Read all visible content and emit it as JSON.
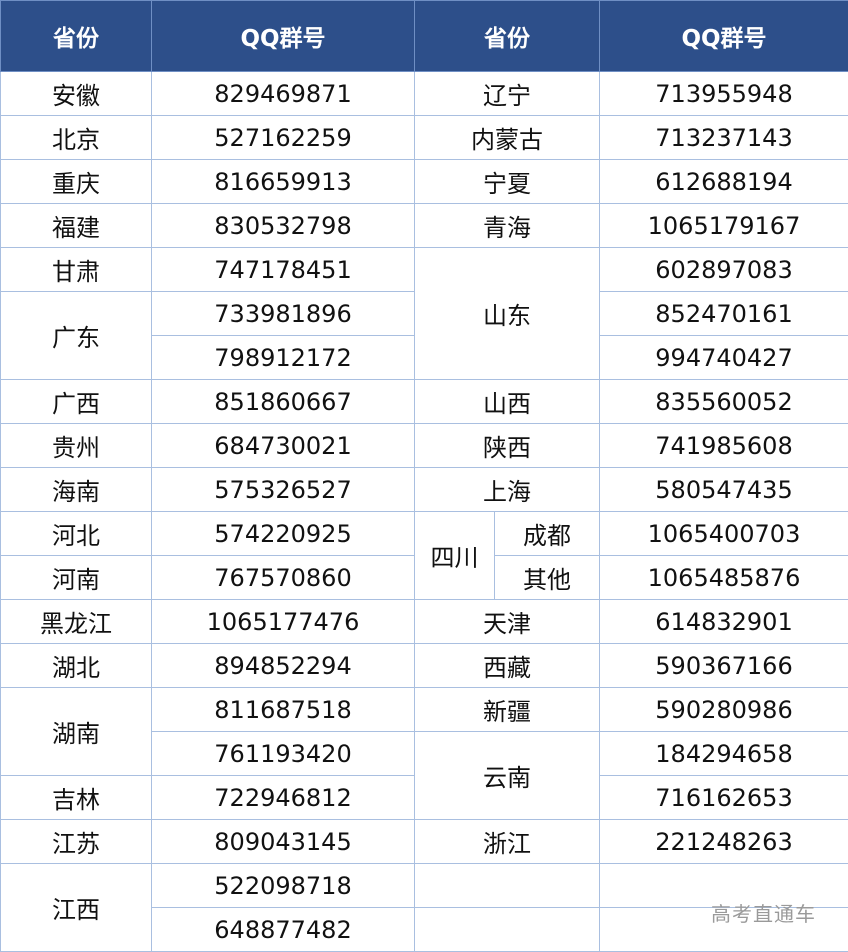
{
  "header": {
    "province": "省份",
    "qq": "QQ群号"
  },
  "left": [
    {
      "province": "安徽",
      "qq": [
        "829469871"
      ]
    },
    {
      "province": "北京",
      "qq": [
        "527162259"
      ]
    },
    {
      "province": "重庆",
      "qq": [
        "816659913"
      ]
    },
    {
      "province": "福建",
      "qq": [
        "830532798"
      ]
    },
    {
      "province": "甘肃",
      "qq": [
        "747178451"
      ]
    },
    {
      "province": "广东",
      "qq": [
        "733981896",
        "798912172"
      ]
    },
    {
      "province": "广西",
      "qq": [
        "851860667"
      ]
    },
    {
      "province": "贵州",
      "qq": [
        "684730021"
      ]
    },
    {
      "province": "海南",
      "qq": [
        "575326527"
      ]
    },
    {
      "province": "河北",
      "qq": [
        "574220925"
      ]
    },
    {
      "province": "河南",
      "qq": [
        "767570860"
      ]
    },
    {
      "province": "黑龙江",
      "qq": [
        "1065177476"
      ]
    },
    {
      "province": "湖北",
      "qq": [
        "894852294"
      ]
    },
    {
      "province": "湖南",
      "qq": [
        "811687518",
        "761193420"
      ]
    },
    {
      "province": "吉林",
      "qq": [
        "722946812"
      ]
    },
    {
      "province": "江苏",
      "qq": [
        "809043145"
      ]
    },
    {
      "province": "江西",
      "qq": [
        "522098718",
        "648877482"
      ]
    }
  ],
  "right": [
    {
      "province": "辽宁",
      "qq": [
        "713955948"
      ]
    },
    {
      "province": "内蒙古",
      "qq": [
        "713237143"
      ]
    },
    {
      "province": "宁夏",
      "qq": [
        "612688194"
      ]
    },
    {
      "province": "青海",
      "qq": [
        "1065179167"
      ]
    },
    {
      "province": "山东",
      "qq": [
        "602897083",
        "852470161",
        "994740427"
      ]
    },
    {
      "province": "山西",
      "qq": [
        "835560052"
      ]
    },
    {
      "province": "陕西",
      "qq": [
        "741985608"
      ]
    },
    {
      "province": "上海",
      "qq": [
        "580547435"
      ]
    },
    {
      "province": "四川",
      "sub": [
        {
          "name": "成都",
          "qq": "1065400703"
        },
        {
          "name": "其他",
          "qq": "1065485876"
        }
      ]
    },
    {
      "province": "天津",
      "qq": [
        "614832901"
      ]
    },
    {
      "province": "西藏",
      "qq": [
        "590367166"
      ]
    },
    {
      "province": "新疆",
      "qq": [
        "590280986"
      ]
    },
    {
      "province": "云南",
      "qq": [
        "184294658",
        "716162653"
      ]
    },
    {
      "province": "浙江",
      "qq": [
        "221248263"
      ]
    }
  ],
  "watermark": "高考直通车",
  "colors": {
    "header_bg": "#2d4f8a",
    "header_text": "#ffffff",
    "border": "#a9bfe0"
  }
}
